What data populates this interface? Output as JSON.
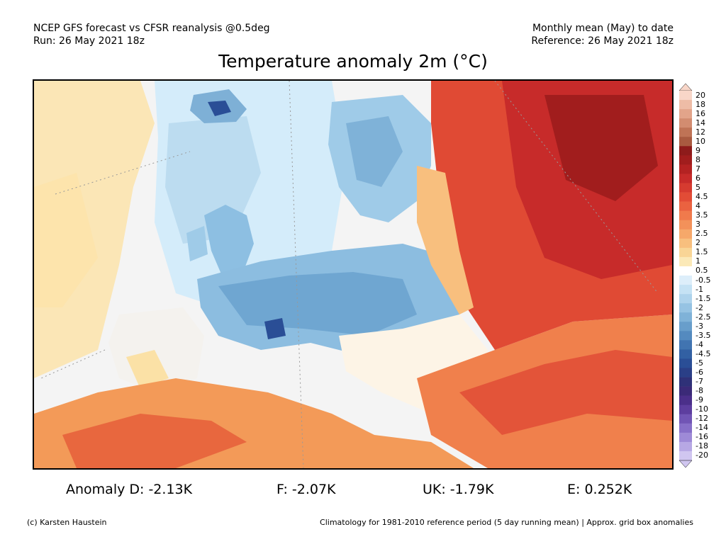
{
  "header": {
    "line1_left": "NCEP GFS forecast vs CFSR reanalysis @0.5deg",
    "line2_left": "Run: 26 May 2021 18z",
    "line1_right": "Monthly mean (May) to date",
    "line2_right": "Reference: 26 May 2021 18z"
  },
  "title": "Temperature anomaly 2m (°C)",
  "colorbar": {
    "labels": [
      "20",
      "18",
      "16",
      "14",
      "12",
      "10",
      "9",
      "8",
      "7",
      "6",
      "5",
      "4.5",
      "4",
      "3.5",
      "3",
      "2.5",
      "2",
      "1.5",
      "1",
      "0.5",
      "-0.5",
      "-1",
      "-1.5",
      "-2",
      "-2.5",
      "-3",
      "-3.5",
      "-4",
      "-4.5",
      "-5",
      "-6",
      "-7",
      "-8",
      "-9",
      "-10",
      "-12",
      "-14",
      "-16",
      "-18",
      "-20"
    ],
    "colors": [
      "#f8d6c8",
      "#eebca6",
      "#e2a48a",
      "#d28c70",
      "#bf7356",
      "#a95a40",
      "#8e1b1b",
      "#a11d1d",
      "#b42222",
      "#c72b2a",
      "#d63b30",
      "#e24c36",
      "#ea6240",
      "#f07a4c",
      "#f3915a",
      "#f6a86a",
      "#f8bf7e",
      "#f9d596",
      "#fbe9b8",
      "#ffffff",
      "#ddeefa",
      "#c5e2f4",
      "#aed3ec",
      "#96c3e3",
      "#7fb2d8",
      "#689ecb",
      "#548abf",
      "#4174b1",
      "#3260a3",
      "#2a4e96",
      "#2a3f87",
      "#2f3178",
      "#3b2a78",
      "#4b2f8a",
      "#5d3e9f",
      "#7155b5",
      "#876fc8",
      "#9e8ad7",
      "#b7a8e4",
      "#d0c6f0"
    ]
  },
  "stats": {
    "germany": "Anomaly D: -2.13K",
    "france": "F: -2.07K",
    "uk": "UK: -1.79K",
    "spain": "E: 0.252K"
  },
  "footer": {
    "left": "(c) Karsten Haustein",
    "right": "Climatology for 1981-2010 reference period (5 day running mean) | Approx. grid box anomalies"
  }
}
